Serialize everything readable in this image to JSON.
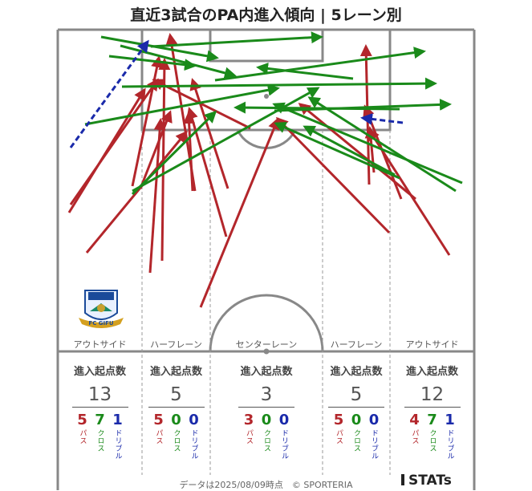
{
  "title": "直近3試合のPA内進入傾向 | 5レーン別",
  "lanes": [
    {
      "label": "アウトサイド",
      "heading": "進入起点数",
      "total": "13",
      "pass": "5",
      "cross": "7",
      "dribble": "1"
    },
    {
      "label": "ハーフレーン",
      "heading": "進入起点数",
      "total": "5",
      "pass": "5",
      "cross": "0",
      "dribble": "0"
    },
    {
      "label": "センターレーン",
      "heading": "進入起点数",
      "total": "3",
      "pass": "3",
      "cross": "0",
      "dribble": "0"
    },
    {
      "label": "ハーフレーン",
      "heading": "進入起点数",
      "total": "5",
      "pass": "5",
      "cross": "0",
      "dribble": "0"
    },
    {
      "label": "アウトサイド",
      "heading": "進入起点数",
      "total": "12",
      "pass": "4",
      "cross": "7",
      "dribble": "1"
    }
  ],
  "legend": {
    "pass": "パス",
    "cross": "クロス",
    "dribble": "ドリブル"
  },
  "colors": {
    "pass": "#b3262b",
    "cross": "#1a8a1a",
    "dribble": "#1a2aaa"
  },
  "logo_text": "FC GIFU",
  "footer": "データは2025/08/09時点　© SPORTERIA",
  "brand": "STATs"
}
